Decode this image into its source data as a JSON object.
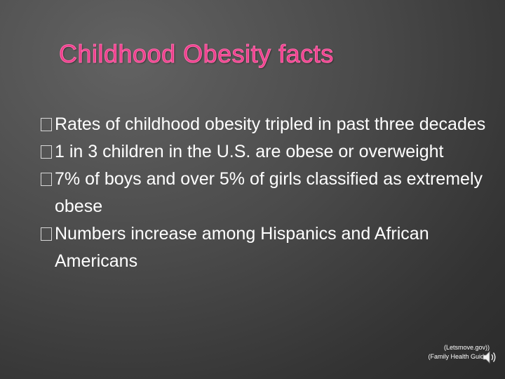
{
  "slide": {
    "title": "Childhood Obesity facts",
    "bullets": [
      "Rates of childhood obesity tripled in past three decades",
      "1 in 3 children in the U.S. are obese or overweight",
      "7% of boys and over 5% of girls classified as extremely obese",
      "Numbers increase among Hispanics and African Americans"
    ],
    "bullet_icon": "empty-square-icon",
    "sources": [
      "(Letsmove.gov))",
      "(Family Health Guide)"
    ],
    "audio_icon": "speaker-icon"
  },
  "colors": {
    "title": "#ee3d8c",
    "text": "#ffffff",
    "background": "#4a4a4a"
  }
}
